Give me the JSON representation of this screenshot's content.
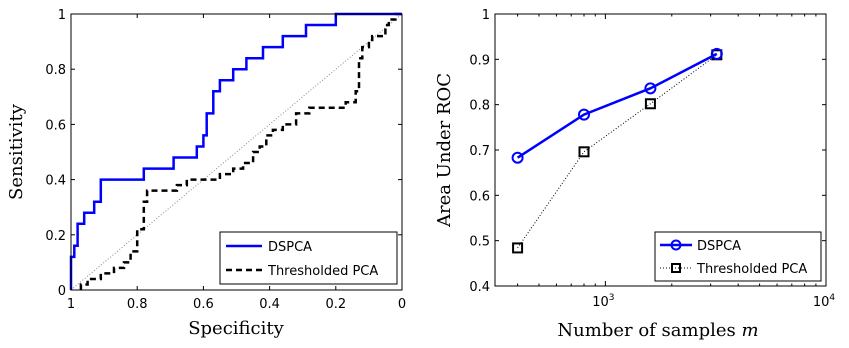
{
  "chart_data": [
    {
      "type": "line",
      "xlabel": "Specificity",
      "ylabel": "Sensitivity",
      "xlim": [
        1,
        0
      ],
      "x_reversed": true,
      "ylim": [
        0,
        1
      ],
      "xticks": [
        "1",
        "0.8",
        "0.6",
        "0.4",
        "0.2",
        "0"
      ],
      "yticks": [
        "0",
        "0.2",
        "0.4",
        "0.6",
        "0.8",
        "1"
      ],
      "grid": false,
      "legend": "bottom-right",
      "series": [
        {
          "name": "DSPCA",
          "color": "#0000ff",
          "style": "solid",
          "points": [
            [
              1,
              0
            ],
            [
              1,
              0.12
            ],
            [
              0.99,
              0.12
            ],
            [
              0.99,
              0.16
            ],
            [
              0.98,
              0.16
            ],
            [
              0.98,
              0.24
            ],
            [
              0.96,
              0.24
            ],
            [
              0.96,
              0.28
            ],
            [
              0.93,
              0.28
            ],
            [
              0.93,
              0.32
            ],
            [
              0.91,
              0.32
            ],
            [
              0.91,
              0.4
            ],
            [
              0.78,
              0.4
            ],
            [
              0.78,
              0.44
            ],
            [
              0.69,
              0.44
            ],
            [
              0.69,
              0.48
            ],
            [
              0.62,
              0.48
            ],
            [
              0.62,
              0.52
            ],
            [
              0.6,
              0.52
            ],
            [
              0.6,
              0.56
            ],
            [
              0.59,
              0.56
            ],
            [
              0.59,
              0.64
            ],
            [
              0.57,
              0.64
            ],
            [
              0.57,
              0.72
            ],
            [
              0.55,
              0.72
            ],
            [
              0.55,
              0.76
            ],
            [
              0.51,
              0.76
            ],
            [
              0.51,
              0.8
            ],
            [
              0.47,
              0.8
            ],
            [
              0.47,
              0.84
            ],
            [
              0.42,
              0.84
            ],
            [
              0.42,
              0.88
            ],
            [
              0.36,
              0.88
            ],
            [
              0.36,
              0.92
            ],
            [
              0.29,
              0.92
            ],
            [
              0.29,
              0.96
            ],
            [
              0.2,
              0.96
            ],
            [
              0.2,
              1
            ],
            [
              0,
              1
            ]
          ]
        },
        {
          "name": "Thresholded PCA",
          "color": "#000000",
          "style": "dashed",
          "points": [
            [
              0.97,
              0
            ],
            [
              0.97,
              0.02
            ],
            [
              0.95,
              0.02
            ],
            [
              0.95,
              0.04
            ],
            [
              0.91,
              0.04
            ],
            [
              0.91,
              0.06
            ],
            [
              0.87,
              0.06
            ],
            [
              0.87,
              0.08
            ],
            [
              0.84,
              0.08
            ],
            [
              0.84,
              0.1
            ],
            [
              0.82,
              0.1
            ],
            [
              0.82,
              0.14
            ],
            [
              0.8,
              0.14
            ],
            [
              0.8,
              0.22
            ],
            [
              0.78,
              0.22
            ],
            [
              0.78,
              0.32
            ],
            [
              0.77,
              0.32
            ],
            [
              0.77,
              0.36
            ],
            [
              0.68,
              0.36
            ],
            [
              0.68,
              0.38
            ],
            [
              0.65,
              0.38
            ],
            [
              0.65,
              0.4
            ],
            [
              0.55,
              0.4
            ],
            [
              0.55,
              0.42
            ],
            [
              0.51,
              0.42
            ],
            [
              0.51,
              0.44
            ],
            [
              0.48,
              0.44
            ],
            [
              0.48,
              0.46
            ],
            [
              0.45,
              0.46
            ],
            [
              0.45,
              0.5
            ],
            [
              0.43,
              0.5
            ],
            [
              0.43,
              0.52
            ],
            [
              0.41,
              0.52
            ],
            [
              0.41,
              0.56
            ],
            [
              0.39,
              0.56
            ],
            [
              0.39,
              0.58
            ],
            [
              0.36,
              0.58
            ],
            [
              0.36,
              0.6
            ],
            [
              0.32,
              0.6
            ],
            [
              0.32,
              0.64
            ],
            [
              0.28,
              0.64
            ],
            [
              0.28,
              0.66
            ],
            [
              0.17,
              0.66
            ],
            [
              0.17,
              0.68
            ],
            [
              0.14,
              0.68
            ],
            [
              0.14,
              0.72
            ],
            [
              0.13,
              0.72
            ],
            [
              0.13,
              0.84
            ],
            [
              0.12,
              0.84
            ],
            [
              0.12,
              0.88
            ],
            [
              0.1,
              0.88
            ],
            [
              0.1,
              0.9
            ],
            [
              0.09,
              0.9
            ],
            [
              0.09,
              0.92
            ],
            [
              0.05,
              0.92
            ],
            [
              0.05,
              0.96
            ],
            [
              0.04,
              0.96
            ],
            [
              0.04,
              0.98
            ],
            [
              0.02,
              0.98
            ],
            [
              0.02,
              1
            ],
            [
              0,
              1
            ]
          ]
        },
        {
          "color": "#888888",
          "style": "dotted",
          "points": [
            [
              1,
              0
            ],
            [
              0,
              1
            ]
          ]
        }
      ]
    },
    {
      "type": "line",
      "xlabel": "Number of samples",
      "xlabel_symbol": "m",
      "ylabel": "Area Under ROC",
      "xscale": "log",
      "xlim": [
        316,
        10000
      ],
      "ylim": [
        0.4,
        1.0
      ],
      "xticks": [
        {
          "value": 1000,
          "base": "10",
          "exp": "3"
        },
        {
          "value": 10000,
          "base": "10",
          "exp": "4"
        }
      ],
      "yticks": [
        "0.4",
        "0.5",
        "0.6",
        "0.7",
        "0.8",
        "0.9",
        "1"
      ],
      "grid": false,
      "legend": "bottom-right",
      "x": [
        400,
        800,
        1600,
        3200
      ],
      "series": [
        {
          "name": "DSPCA",
          "color": "#0000ff",
          "style": "solid",
          "marker": "circle",
          "values": [
            0.683,
            0.778,
            0.836,
            0.912
          ]
        },
        {
          "name": "Thresholded PCA",
          "color": "#000000",
          "style": "dotted",
          "marker": "square",
          "values": [
            0.484,
            0.696,
            0.802,
            0.91
          ]
        }
      ]
    }
  ]
}
